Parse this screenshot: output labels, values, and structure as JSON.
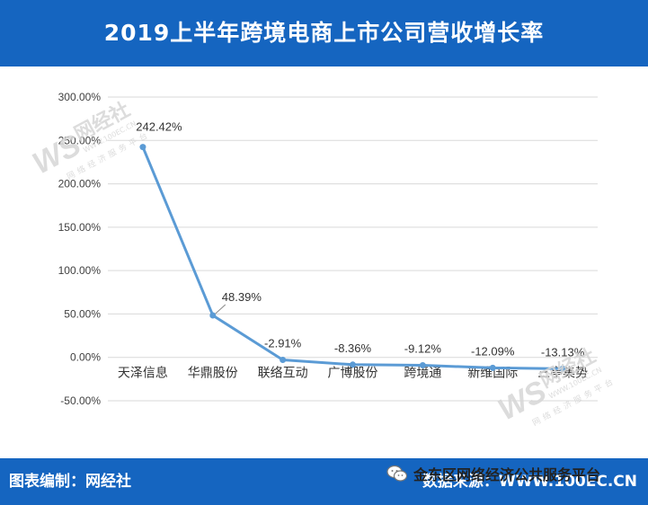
{
  "title": "2019上半年跨境电商上市公司营收增长率",
  "footer": {
    "left": "图表编制：网经社",
    "right": "数据来源：WWW.100EC.CN",
    "wechat_label": "金东区网络经济公共服务平台"
  },
  "watermarks": [
    {
      "brand": "网经社",
      "domain": "WWW.100EC.CN",
      "tagline": "网络经济服务平台"
    },
    {
      "brand": "网经社",
      "domain": "WWW.100EC.CN",
      "tagline": "网络经济服务平台"
    }
  ],
  "colors": {
    "header_bg": "#1565c0",
    "line": "#5b9bd5",
    "grid": "#d9d9d9",
    "text": "#404040"
  },
  "chart_data": {
    "type": "line",
    "title": "2019上半年跨境电商上市公司营收增长率",
    "categories": [
      "天泽信息",
      "华鼎股份",
      "联络互动",
      "广博股份",
      "跨境通",
      "新维国际",
      "三亭集势"
    ],
    "values": [
      242.42,
      48.39,
      -2.91,
      -8.36,
      -9.12,
      -12.09,
      -13.13
    ],
    "data_labels": [
      "242.42%",
      "48.39%",
      "-2.91%",
      "-8.36%",
      "-9.12%",
      "-12.09%",
      "-13.13%"
    ],
    "y_ticks": [
      "300.00%",
      "250.00%",
      "200.00%",
      "150.00%",
      "100.00%",
      "50.00%",
      "0.00%",
      "-50.00%"
    ],
    "y_tick_values": [
      300,
      250,
      200,
      150,
      100,
      50,
      0,
      -50
    ],
    "ylim": [
      -50,
      300
    ],
    "grid": true,
    "legend": "none",
    "xlabel": "",
    "ylabel": ""
  }
}
